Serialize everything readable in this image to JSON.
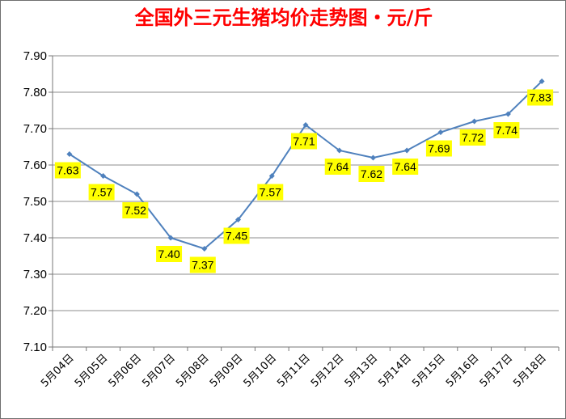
{
  "chart_data": {
    "type": "line",
    "title": "全国外三元生猪均价走势图・元/斤",
    "categories": [
      "5月04日",
      "5月05日",
      "5月06日",
      "5月07日",
      "5月08日",
      "5月09日",
      "5月10日",
      "5月11日",
      "5月12日",
      "5月13日",
      "5月14日",
      "5月15日",
      "5月16日",
      "5月17日",
      "5月18日"
    ],
    "series": [
      {
        "values": [
          7.63,
          7.57,
          7.52,
          7.4,
          7.37,
          7.45,
          7.57,
          7.71,
          7.64,
          7.62,
          7.64,
          7.69,
          7.72,
          7.74,
          7.83
        ]
      }
    ],
    "data_labels": [
      "7.63",
      "7.57",
      "7.52",
      "7.40",
      "7.37",
      "7.45",
      "7.57",
      "7.71",
      "7.64",
      "7.62",
      "7.64",
      "7.69",
      "7.72",
      "7.74",
      "7.83"
    ],
    "y_ticks": [
      "7.10",
      "7.20",
      "7.30",
      "7.40",
      "7.50",
      "7.60",
      "7.70",
      "7.80",
      "7.90"
    ],
    "ylim": [
      7.1,
      7.9
    ],
    "xlabel": "",
    "ylabel": "",
    "grid": true,
    "legend": "none",
    "colors": {
      "line": "#4f81bd",
      "label_bg": "#ffff00",
      "title": "#ff0000",
      "grid": "#8c8c8c"
    }
  }
}
